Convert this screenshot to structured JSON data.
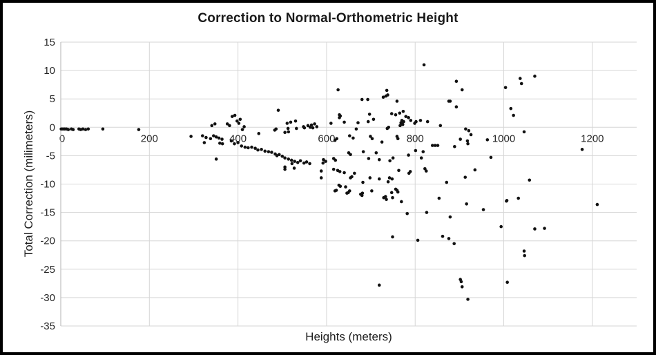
{
  "chart_data": {
    "type": "scatter",
    "title": "Correction to Normal-Orthometric Height",
    "xlabel": "Heights (meters)",
    "ylabel": "Total Correction (milimeters)",
    "xlim": [
      0,
      1300
    ],
    "ylim": [
      -35,
      15
    ],
    "x_ticks": [
      0,
      200,
      400,
      600,
      800,
      1000,
      1200
    ],
    "y_ticks": [
      15,
      10,
      5,
      0,
      -5,
      -10,
      -15,
      -20,
      -25,
      -30,
      -35
    ],
    "grid": true,
    "legend": "none",
    "marker_color": "#111111",
    "gridline_color": "#d6d6d6",
    "axis_line_color": "#b3b3b3",
    "axis_text_color": "#262626",
    "points": [
      [
        1,
        -0.3
      ],
      [
        5,
        -0.3
      ],
      [
        9,
        -0.3
      ],
      [
        13,
        -0.3
      ],
      [
        17,
        -0.4
      ],
      [
        24,
        -0.3
      ],
      [
        28,
        -0.4
      ],
      [
        41,
        -0.3
      ],
      [
        45,
        -0.4
      ],
      [
        50,
        -0.3
      ],
      [
        56,
        -0.4
      ],
      [
        62,
        -0.3
      ],
      [
        95,
        -0.3
      ],
      [
        176,
        -0.4
      ],
      [
        294,
        -1.6
      ],
      [
        320,
        -1.5
      ],
      [
        324,
        -2.7
      ],
      [
        328,
        -1.8
      ],
      [
        338,
        -2.0
      ],
      [
        341,
        0.3
      ],
      [
        345,
        -1.5
      ],
      [
        348,
        0.6
      ],
      [
        351,
        -1.7
      ],
      [
        351,
        -5.6
      ],
      [
        357,
        -1.9
      ],
      [
        359,
        -2.8
      ],
      [
        364,
        -2.1
      ],
      [
        365,
        -2.9
      ],
      [
        376,
        0.6
      ],
      [
        381,
        0.3
      ],
      [
        387,
        1.9
      ],
      [
        393,
        2.1
      ],
      [
        398,
        1.1
      ],
      [
        402,
        0.7
      ],
      [
        405,
        1.4
      ],
      [
        410,
        -0.4
      ],
      [
        414,
        0.1
      ],
      [
        385,
        -2.4
      ],
      [
        392,
        -2.9
      ],
      [
        400,
        -2.7
      ],
      [
        408,
        -3.3
      ],
      [
        416,
        -3.5
      ],
      [
        423,
        -3.6
      ],
      [
        431,
        -3.5
      ],
      [
        439,
        -3.7
      ],
      [
        445,
        -4.0
      ],
      [
        453,
        -3.9
      ],
      [
        461,
        -4.2
      ],
      [
        469,
        -4.3
      ],
      [
        476,
        -4.4
      ],
      [
        484,
        -4.7
      ],
      [
        488,
        -5.0
      ],
      [
        493,
        -4.8
      ],
      [
        500,
        -5.1
      ],
      [
        506,
        -5.4
      ],
      [
        514,
        -5.6
      ],
      [
        521,
        -5.8
      ],
      [
        528,
        -6.0
      ],
      [
        535,
        -6.2
      ],
      [
        541,
        -5.9
      ],
      [
        549,
        -6.3
      ],
      [
        555,
        -6.1
      ],
      [
        562,
        -6.4
      ],
      [
        506,
        -7.0
      ],
      [
        522,
        -6.4
      ],
      [
        527,
        -7.2
      ],
      [
        447,
        -1.1
      ],
      [
        483,
        -0.5
      ],
      [
        486,
        -0.3
      ],
      [
        506,
        -0.9
      ],
      [
        513,
        -0.2
      ],
      [
        514,
        -0.8
      ],
      [
        511,
        0.7
      ],
      [
        519,
        0.9
      ],
      [
        530,
        1.1
      ],
      [
        532,
        -0.2
      ],
      [
        491,
        3.0
      ],
      [
        548,
        0.1
      ],
      [
        550,
        -0.1
      ],
      [
        558,
        0.3
      ],
      [
        563,
        0.0
      ],
      [
        566,
        0.4
      ],
      [
        569,
        -0.1
      ],
      [
        573,
        0.6
      ],
      [
        578,
        0.1
      ],
      [
        610,
        0.7
      ],
      [
        626,
        6.6
      ],
      [
        629,
        2.2
      ],
      [
        629,
        1.7
      ],
      [
        631,
        2.0
      ],
      [
        640,
        0.9
      ],
      [
        680,
        4.9
      ],
      [
        693,
        4.9
      ],
      [
        697,
        2.3
      ],
      [
        706,
        1.4
      ],
      [
        728,
        5.3
      ],
      [
        734,
        5.5
      ],
      [
        736,
        6.5
      ],
      [
        738,
        5.7
      ],
      [
        756,
        2.2
      ],
      [
        759,
        4.6
      ],
      [
        765,
        2.5
      ],
      [
        773,
        2.8
      ],
      [
        820,
        11.0
      ],
      [
        876,
        4.6
      ],
      [
        879,
        4.6
      ],
      [
        893,
        3.6
      ],
      [
        893,
        8.1
      ],
      [
        906,
        6.6
      ],
      [
        1004,
        7.0
      ],
      [
        1016,
        3.3
      ],
      [
        1022,
        2.1
      ],
      [
        1037,
        8.6
      ],
      [
        1040,
        7.7
      ],
      [
        1070,
        9.0
      ],
      [
        619,
        -2.3
      ],
      [
        623,
        -2.0
      ],
      [
        652,
        -1.5
      ],
      [
        660,
        -1.9
      ],
      [
        667,
        -0.3
      ],
      [
        671,
        0.8
      ],
      [
        694,
        1.0
      ],
      [
        699,
        -1.6
      ],
      [
        703,
        -2.0
      ],
      [
        725,
        -2.6
      ],
      [
        737,
        -0.2
      ],
      [
        740,
        0.0
      ],
      [
        747,
        2.4
      ],
      [
        759,
        -1.6
      ],
      [
        761,
        -2.0
      ],
      [
        766,
        0.3
      ],
      [
        768,
        0.8
      ],
      [
        770,
        1.2
      ],
      [
        772,
        0.5
      ],
      [
        774,
        1.0
      ],
      [
        779,
        1.9
      ],
      [
        785,
        1.7
      ],
      [
        790,
        1.2
      ],
      [
        799,
        0.7
      ],
      [
        802,
        1.0
      ],
      [
        812,
        1.2
      ],
      [
        828,
        1.0
      ],
      [
        857,
        0.3
      ],
      [
        902,
        -2.1
      ],
      [
        914,
        -0.3
      ],
      [
        918,
        -2.4
      ],
      [
        919,
        -2.9
      ],
      [
        921,
        -0.6
      ],
      [
        926,
        -1.3
      ],
      [
        963,
        -2.2
      ],
      [
        1046,
        -0.8
      ],
      [
        592,
        -6.3
      ],
      [
        593,
        -5.7
      ],
      [
        598,
        -6.0
      ],
      [
        616,
        -5.5
      ],
      [
        620,
        -5.8
      ],
      [
        650,
        -4.5
      ],
      [
        654,
        -4.8
      ],
      [
        683,
        -4.3
      ],
      [
        695,
        -5.5
      ],
      [
        712,
        -4.5
      ],
      [
        719,
        -5.7
      ],
      [
        743,
        -5.9
      ],
      [
        750,
        -5.4
      ],
      [
        785,
        -4.9
      ],
      [
        801,
        -4.1
      ],
      [
        814,
        -5.4
      ],
      [
        818,
        -4.3
      ],
      [
        839,
        -3.2
      ],
      [
        845,
        -3.2
      ],
      [
        851,
        -3.2
      ],
      [
        889,
        -3.4
      ],
      [
        971,
        -5.3
      ],
      [
        1177,
        -3.9
      ],
      [
        506,
        -7.4
      ],
      [
        588,
        -7.7
      ],
      [
        588,
        -8.9
      ],
      [
        616,
        -7.4
      ],
      [
        625,
        -7.6
      ],
      [
        630,
        -7.8
      ],
      [
        640,
        -8.0
      ],
      [
        654,
        -8.9
      ],
      [
        657,
        -8.7
      ],
      [
        663,
        -8.1
      ],
      [
        682,
        -9.7
      ],
      [
        698,
        -8.9
      ],
      [
        719,
        -9.1
      ],
      [
        739,
        -9.6
      ],
      [
        742,
        -8.9
      ],
      [
        748,
        -9.1
      ],
      [
        763,
        -7.6
      ],
      [
        786,
        -8.1
      ],
      [
        789,
        -7.8
      ],
      [
        822,
        -7.3
      ],
      [
        825,
        -7.7
      ],
      [
        871,
        -9.7
      ],
      [
        913,
        -8.8
      ],
      [
        935,
        -7.5
      ],
      [
        1058,
        -9.3
      ],
      [
        619,
        -11.2
      ],
      [
        622,
        -11.1
      ],
      [
        628,
        -10.2
      ],
      [
        631,
        -10.4
      ],
      [
        643,
        -10.5
      ],
      [
        646,
        -11.6
      ],
      [
        649,
        -11.5
      ],
      [
        652,
        -11.2
      ],
      [
        677,
        -11.8
      ],
      [
        680,
        -12.0
      ],
      [
        681,
        -11.6
      ],
      [
        702,
        -11.2
      ],
      [
        729,
        -12.4
      ],
      [
        733,
        -12.2
      ],
      [
        735,
        -12.7
      ],
      [
        747,
        -11.5
      ],
      [
        749,
        -12.4
      ],
      [
        756,
        -10.9
      ],
      [
        759,
        -11.1
      ],
      [
        761,
        -11.4
      ],
      [
        769,
        -13.1
      ],
      [
        854,
        -12.5
      ],
      [
        916,
        -13.5
      ],
      [
        1006,
        -13.0
      ],
      [
        1007,
        -12.9
      ],
      [
        1033,
        -12.5
      ],
      [
        1211,
        -13.6
      ],
      [
        782,
        -15.2
      ],
      [
        826,
        -15.0
      ],
      [
        879,
        -15.8
      ],
      [
        954,
        -14.5
      ],
      [
        994,
        -17.5
      ],
      [
        749,
        -19.3
      ],
      [
        806,
        -19.9
      ],
      [
        862,
        -19.2
      ],
      [
        876,
        -19.6
      ],
      [
        888,
        -20.5
      ],
      [
        1070,
        -17.9
      ],
      [
        1092,
        -17.8
      ],
      [
        1046,
        -21.8
      ],
      [
        1047,
        -22.6
      ],
      [
        719,
        -27.8
      ],
      [
        902,
        -26.8
      ],
      [
        904,
        -27.2
      ],
      [
        906,
        -28.1
      ],
      [
        919,
        -30.3
      ],
      [
        1008,
        -27.3
      ]
    ]
  }
}
